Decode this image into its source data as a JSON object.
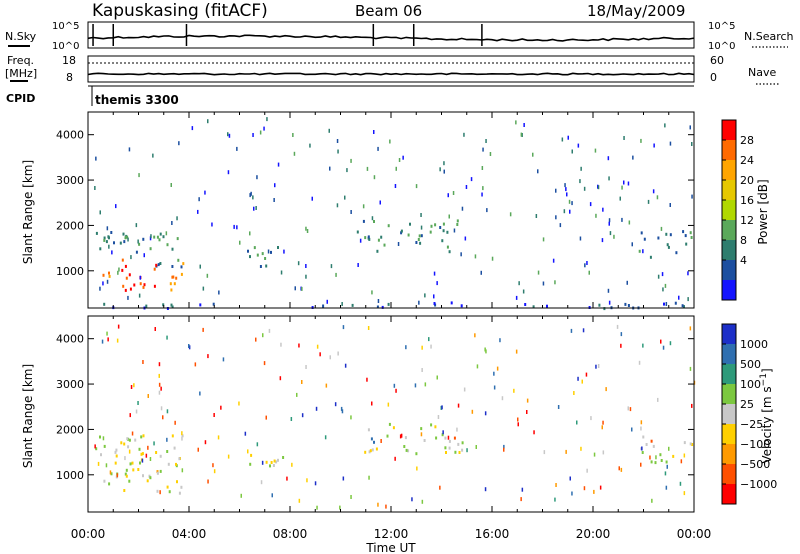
{
  "header": {
    "station": "Kapuskasing (fitACF)",
    "beam": "Beam 06",
    "date": "18/May/2009"
  },
  "noise_panel": {
    "left_label": "N.Sky",
    "right_label": "N.Search",
    "left_ticks": [
      "10^5",
      "10^0"
    ],
    "right_ticks": [
      "10^5",
      "10^0"
    ]
  },
  "freq_panel": {
    "left_label_1": "Freq.",
    "left_label_2": "[MHz]",
    "right_label": "Nave",
    "left_ticks": [
      "18",
      "8"
    ],
    "right_ticks": [
      "60",
      "0"
    ]
  },
  "cpid": {
    "label": "CPID",
    "value": "themis 3300"
  },
  "x_axis": {
    "label": "Time UT",
    "ticks": [
      "00:00",
      "04:00",
      "08:00",
      "12:00",
      "16:00",
      "20:00",
      "00:00"
    ]
  },
  "chart_data": [
    {
      "type": "heatmap",
      "name": "power",
      "ylabel": "Slant Range [km]",
      "yticks": [
        1000,
        2000,
        3000,
        4000
      ],
      "ylim": [
        180,
        4500
      ],
      "xlim": [
        0,
        24
      ],
      "colorbar": {
        "label": "Power [dB]",
        "ticks": [
          "28",
          "24",
          "20",
          "16",
          "12",
          "8",
          "4"
        ],
        "colors": [
          "#ff0000",
          "#ff6a00",
          "#ffa500",
          "#e6c800",
          "#b0d800",
          "#5aa85a",
          "#2e7d6e",
          "#1c4fa0",
          "#1414ff"
        ]
      },
      "regions": [
        {
          "t0": 0.1,
          "t1": 3.8,
          "r0": 1100,
          "r1": 1900,
          "level": 6
        },
        {
          "t0": 0.4,
          "t1": 3.9,
          "r0": 600,
          "r1": 1300,
          "level": 1
        },
        {
          "t0": 5.8,
          "t1": 7.8,
          "r0": 1100,
          "r1": 1550,
          "level": 6
        },
        {
          "t0": 10.6,
          "t1": 14.8,
          "r0": 1450,
          "r1": 2150,
          "level": 6
        },
        {
          "t0": 21.8,
          "t1": 24.0,
          "r0": 1300,
          "r1": 1900,
          "level": 6
        },
        {
          "t0": 0.0,
          "t1": 24.0,
          "r0": 200,
          "r1": 330,
          "level": 7
        }
      ]
    },
    {
      "type": "heatmap",
      "name": "velocity",
      "ylabel": "Slant Range [km]",
      "yticks": [
        1000,
        2000,
        3000,
        4000
      ],
      "ylim": [
        180,
        4500
      ],
      "xlim": [
        0,
        24
      ],
      "colorbar": {
        "label": "Velocity [m s^-1]",
        "ticks": [
          "1000",
          "500",
          "100",
          "25",
          "−25",
          "−100",
          "−500",
          "−1000"
        ],
        "colors": [
          "#1c2fc8",
          "#2f6fb0",
          "#2e9a7a",
          "#7cc840",
          "#c8c8c8",
          "#ffd000",
          "#ff9a00",
          "#ff5000",
          "#ff0000"
        ]
      },
      "regions": [
        {
          "t0": 0.1,
          "t1": 3.8,
          "r0": 1100,
          "r1": 1900,
          "level": 4
        },
        {
          "t0": 0.4,
          "t1": 3.9,
          "r0": 600,
          "r1": 1300,
          "level": 4
        },
        {
          "t0": 5.8,
          "t1": 7.8,
          "r0": 1100,
          "r1": 1550,
          "level": 4
        },
        {
          "t0": 10.6,
          "t1": 14.8,
          "r0": 1450,
          "r1": 2150,
          "level": 4
        },
        {
          "t0": 21.8,
          "t1": 24.0,
          "r0": 1300,
          "r1": 1900,
          "level": 4
        }
      ]
    }
  ]
}
